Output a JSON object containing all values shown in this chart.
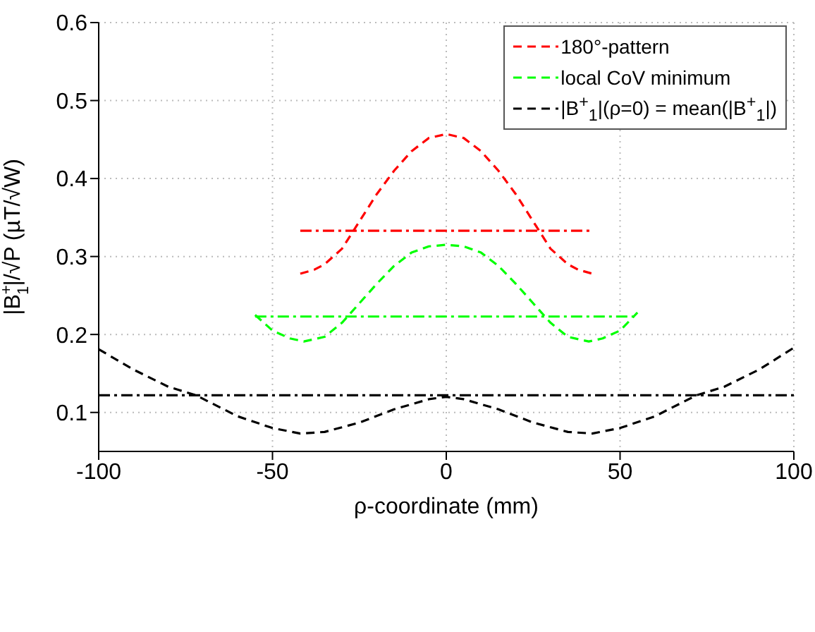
{
  "chart_data": {
    "type": "line",
    "xlabel": "ρ-coordinate (mm)",
    "ylabel": "|B$^{+}$$_{1}$|/√P (µT/√W)",
    "xlim": [
      -100,
      100
    ],
    "xticks": [
      -100,
      -50,
      0,
      50,
      100
    ],
    "ylim": [
      0.05,
      0.6
    ],
    "yticks": [
      0.1,
      0.2,
      0.3,
      0.4,
      0.5,
      0.6
    ],
    "grid": true,
    "legend": "top right",
    "marker": "none",
    "series": [
      {
        "name": "180°-pattern",
        "color": "#ff0000",
        "line_style": "dashed",
        "x": [
          -42,
          -38,
          -35,
          -30,
          -25,
          -20,
          -15,
          -10,
          -5,
          0,
          5,
          10,
          15,
          20,
          25,
          30,
          35,
          38,
          42
        ],
        "values": [
          0.278,
          0.283,
          0.29,
          0.31,
          0.345,
          0.38,
          0.41,
          0.435,
          0.452,
          0.457,
          0.452,
          0.435,
          0.41,
          0.38,
          0.345,
          0.31,
          0.29,
          0.283,
          0.278
        ]
      },
      {
        "name": "local CoV minimum",
        "color": "#00ff00",
        "line_style": "dashed",
        "x": [
          -55,
          -50,
          -45,
          -41,
          -35,
          -30,
          -25,
          -20,
          -15,
          -10,
          -5,
          0,
          5,
          10,
          15,
          20,
          25,
          30,
          35,
          41,
          45,
          50,
          55
        ],
        "values": [
          0.225,
          0.205,
          0.195,
          0.191,
          0.197,
          0.215,
          0.24,
          0.265,
          0.288,
          0.305,
          0.313,
          0.315,
          0.313,
          0.305,
          0.288,
          0.265,
          0.24,
          0.215,
          0.197,
          0.191,
          0.195,
          0.205,
          0.228
        ]
      },
      {
        "name": "|B$^{+}$$_{1}$|(ρ=0) = mean(|B$^{+}$$_{1}$|)",
        "color": "#000000",
        "line_style": "dashed",
        "x": [
          -100,
          -90,
          -80,
          -72,
          -60,
          -50,
          -42,
          -35,
          -25,
          -15,
          -5,
          0,
          5,
          15,
          25,
          35,
          42,
          50,
          60,
          72,
          80,
          90,
          100
        ],
        "values": [
          0.181,
          0.155,
          0.133,
          0.122,
          0.095,
          0.08,
          0.073,
          0.075,
          0.087,
          0.104,
          0.117,
          0.12,
          0.117,
          0.104,
          0.087,
          0.075,
          0.073,
          0.08,
          0.095,
          0.122,
          0.133,
          0.155,
          0.183
        ]
      },
      {
        "color": "#ff0000",
        "line_style": "dotted",
        "x": [
          -42,
          42
        ],
        "values": [
          0.333,
          0.333
        ]
      },
      {
        "color": "#00ff00",
        "line_style": "dotted",
        "x": [
          -55,
          55
        ],
        "values": [
          0.223,
          0.223
        ]
      },
      {
        "color": "#000000",
        "line_style": "dotted",
        "x": [
          -100,
          100
        ],
        "values": [
          0.122,
          0.122
        ]
      }
    ]
  }
}
